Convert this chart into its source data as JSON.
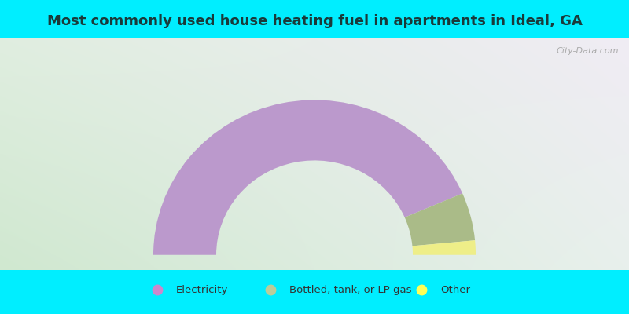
{
  "title": "Most commonly used house heating fuel in apartments in Ideal, GA",
  "categories": [
    "Electricity",
    "Bottled, tank, or LP gas",
    "Other"
  ],
  "values": [
    87.0,
    10.0,
    3.0
  ],
  "colors": [
    "#bb99cc",
    "#aabb88",
    "#eeee88"
  ],
  "legend_colors": [
    "#cc88cc",
    "#bbcc99",
    "#ffff55"
  ],
  "bg_cyan": "#00eeff",
  "title_fontsize": 13,
  "watermark": "City-Data.com"
}
